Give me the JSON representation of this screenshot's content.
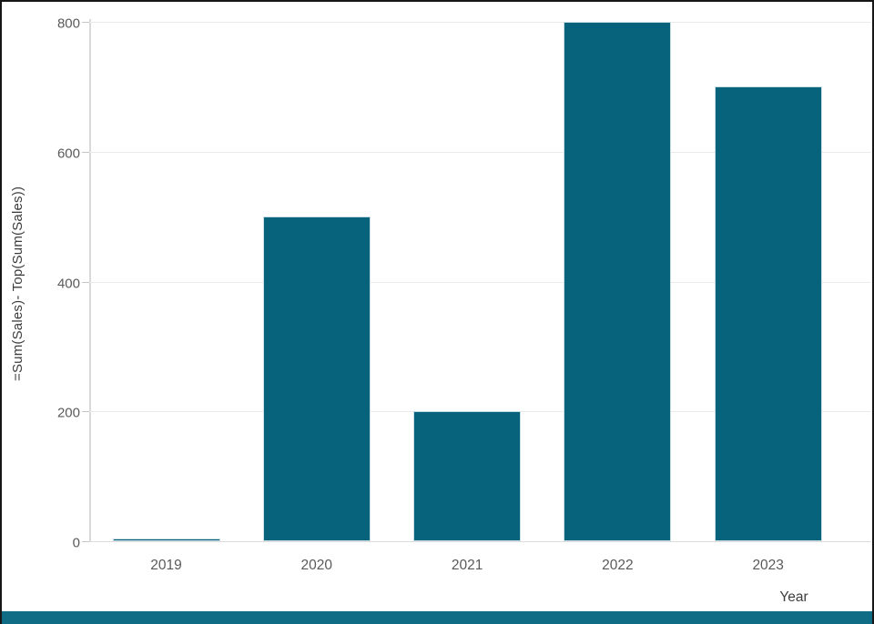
{
  "chart_data": {
    "type": "bar",
    "title": "",
    "categories": [
      "2019",
      "2020",
      "2021",
      "2022",
      "2023"
    ],
    "values": [
      0,
      500,
      200,
      800,
      700
    ],
    "xlabel": "Year",
    "ylabel": "=Sum(Sales)- Top(Sum(Sales))",
    "y_ticks": [
      0,
      200,
      400,
      600,
      800
    ],
    "ylim": [
      0,
      800
    ],
    "grid": true,
    "legend": "none",
    "bar_color": "#07637c"
  },
  "colors": {
    "bar": "#07637c",
    "bar_border": "#c8dde3",
    "gridline": "#eaeaea",
    "axis_line": "#d9d9d9",
    "tick_text": "#5a5a5a",
    "title_text": "#3d3d3d",
    "footer_band": "#0f6c84",
    "frame": "#161616"
  }
}
